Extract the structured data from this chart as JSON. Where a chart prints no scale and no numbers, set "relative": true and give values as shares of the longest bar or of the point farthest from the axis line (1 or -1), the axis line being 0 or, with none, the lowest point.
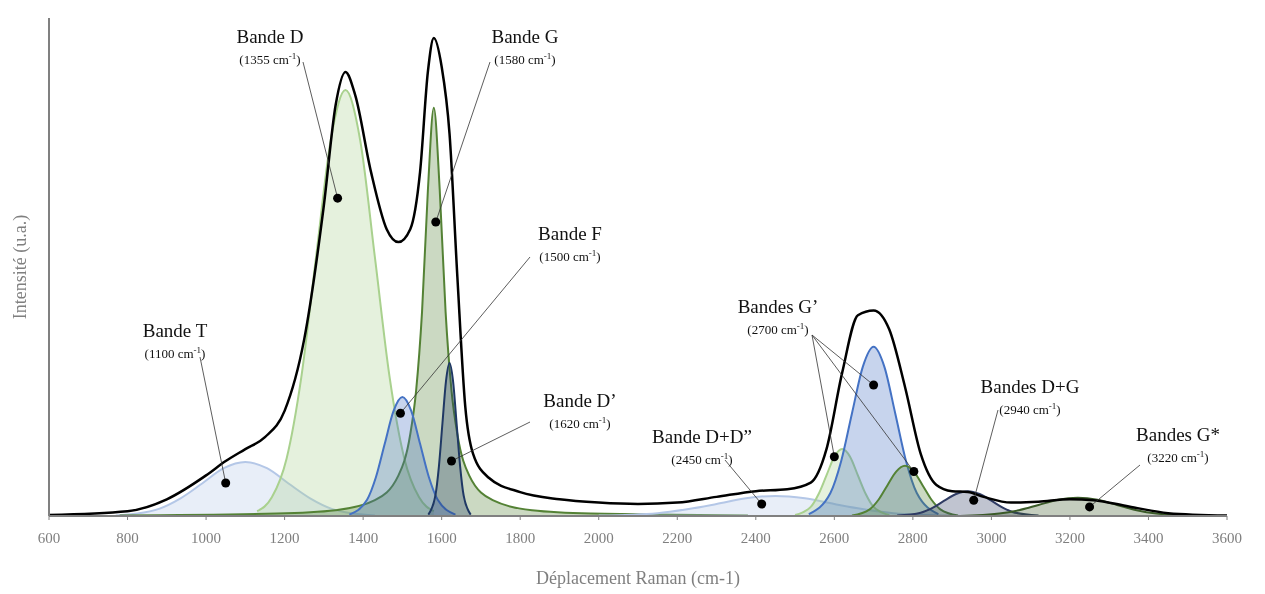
{
  "chart_data": {
    "type": "area",
    "relative": true,
    "xlabel": "Déplacement Raman (cm-1)",
    "ylabel": "Intensité (u.a.)",
    "xlim": [
      600,
      3600
    ],
    "xticks": [
      600,
      800,
      1000,
      1200,
      1400,
      1600,
      1800,
      2000,
      2200,
      2400,
      2600,
      2800,
      3000,
      3200,
      3400,
      3600
    ],
    "series": [
      {
        "color": "#b4c7e7",
        "x": [
          770,
          825,
          880,
          935,
          990,
          1045,
          1100,
          1155,
          1210,
          1265,
          1320,
          1375,
          1430
        ],
        "values": [
          0.001,
          0.005,
          0.015,
          0.037,
          0.068,
          0.1,
          0.113,
          0.1,
          0.068,
          0.037,
          0.015,
          0.005,
          0.001
        ]
      },
      {
        "color": "#a9d18e",
        "x": [
          1130,
          1167.5,
          1205,
          1242.5,
          1280,
          1317.5,
          1355,
          1392.5,
          1430,
          1467.5,
          1505,
          1542.5,
          1580
        ],
        "values": [
          0.01,
          0.039,
          0.12,
          0.29,
          0.541,
          0.786,
          0.891,
          0.786,
          0.541,
          0.29,
          0.12,
          0.039,
          0.01
        ]
      },
      {
        "color": "#548235",
        "x": [
          780,
          1180,
          1330,
          1430,
          1490,
          1520,
          1535,
          1550,
          1565,
          1580,
          1595,
          1610,
          1625,
          1640,
          1670,
          1730,
          1830,
          1980,
          2380
        ],
        "values": [
          0.001,
          0.005,
          0.012,
          0.033,
          0.085,
          0.171,
          0.263,
          0.427,
          0.683,
          0.854,
          0.683,
          0.427,
          0.263,
          0.171,
          0.085,
          0.033,
          0.012,
          0.005,
          0.001
        ]
      },
      {
        "color": "#4472c4",
        "x": [
          1365,
          1410,
          1432.5,
          1455,
          1477.5,
          1500,
          1522.5,
          1545,
          1567.5,
          1590,
          1635
        ],
        "values": [
          0.003,
          0.034,
          0.081,
          0.151,
          0.22,
          0.249,
          0.22,
          0.151,
          0.081,
          0.034,
          0.003
        ]
      },
      {
        "color": "#1f3864",
        "x": [
          1566,
          1584,
          1593,
          1602,
          1611,
          1620,
          1629,
          1638,
          1647,
          1656,
          1674
        ],
        "values": [
          0.003,
          0.043,
          0.104,
          0.194,
          0.282,
          0.32,
          0.282,
          0.194,
          0.104,
          0.043,
          0.003
        ]
      },
      {
        "color": "#b4c7e7",
        "x": [
          2000,
          2150,
          2225,
          2300,
          2375,
          2450,
          2525,
          2600,
          2675,
          2750,
          2900
        ],
        "values": [
          0.001,
          0.006,
          0.014,
          0.025,
          0.037,
          0.042,
          0.037,
          0.025,
          0.014,
          0.006,
          0.001
        ]
      },
      {
        "color": "#a9d18e",
        "x": [
          2500,
          2540,
          2560,
          2580,
          2600,
          2620,
          2640,
          2660,
          2680,
          2700,
          2740
        ],
        "values": [
          0.002,
          0.019,
          0.046,
          0.085,
          0.124,
          0.14,
          0.124,
          0.085,
          0.046,
          0.019,
          0.002
        ]
      },
      {
        "color": "#4472c4",
        "x": [
          2535,
          2590,
          2617.5,
          2645,
          2672.5,
          2700,
          2727.5,
          2755,
          2782.5,
          2810,
          2865
        ],
        "values": [
          0.004,
          0.048,
          0.115,
          0.215,
          0.312,
          0.354,
          0.312,
          0.215,
          0.115,
          0.048,
          0.004
        ]
      },
      {
        "color": "#548235",
        "x": [
          2645,
          2690,
          2712.5,
          2735,
          2757.5,
          2780,
          2802.5,
          2825,
          2847.5,
          2870,
          2915
        ],
        "values": [
          0.001,
          0.014,
          0.034,
          0.064,
          0.093,
          0.105,
          0.093,
          0.064,
          0.034,
          0.014,
          0.001
        ]
      },
      {
        "color": "#2f3b63",
        "x": [
          2760,
          2820,
          2850,
          2880,
          2910,
          2940,
          2970,
          3000,
          3030,
          3060,
          3120
        ],
        "values": [
          0.001,
          0.007,
          0.017,
          0.032,
          0.046,
          0.052,
          0.046,
          0.032,
          0.017,
          0.007,
          0.001
        ]
      },
      {
        "color": "#3a5a28",
        "x": [
          2920,
          3020,
          3070,
          3120,
          3170,
          3220,
          3270,
          3320,
          3370,
          3420,
          3520
        ],
        "values": [
          0,
          0.005,
          0.012,
          0.023,
          0.034,
          0.038,
          0.034,
          0.023,
          0.012,
          0.005,
          0
        ]
      },
      {
        "type": "line",
        "color": "#000000",
        "x": [
          600,
          800,
          900,
          1000,
          1050,
          1100,
          1150,
          1200,
          1250,
          1300,
          1330,
          1355,
          1380,
          1420,
          1460,
          1490,
          1520,
          1545,
          1565,
          1580,
          1600,
          1620,
          1640,
          1660,
          1680,
          1720,
          1800,
          1900,
          2000,
          2100,
          2200,
          2300,
          2400,
          2480,
          2540,
          2580,
          2620,
          2660,
          2700,
          2740,
          2780,
          2820,
          2860,
          2900,
          2940,
          2980,
          3050,
          3120,
          3200,
          3260,
          3350,
          3450,
          3600
        ],
        "values": [
          0.002,
          0.01,
          0.035,
          0.085,
          0.115,
          0.14,
          0.165,
          0.22,
          0.37,
          0.65,
          0.86,
          0.929,
          0.88,
          0.72,
          0.6,
          0.573,
          0.6,
          0.72,
          0.93,
          1.0,
          0.94,
          0.8,
          0.5,
          0.23,
          0.13,
          0.08,
          0.05,
          0.035,
          0.028,
          0.025,
          0.028,
          0.04,
          0.052,
          0.056,
          0.07,
          0.14,
          0.3,
          0.42,
          0.43,
          0.39,
          0.27,
          0.13,
          0.065,
          0.052,
          0.05,
          0.04,
          0.028,
          0.03,
          0.035,
          0.033,
          0.02,
          0.006,
          0.001
        ]
      }
    ],
    "annotations": [
      {
        "text": "Bande T\n(1100 cm$^{-1}$)",
        "x": 1050,
        "y": 0.069
      },
      {
        "text": "Bande D\n(1355 cm$^{-1}$)",
        "x": 1335,
        "y": 0.665
      },
      {
        "text": "Bande G\n(1580 cm$^{-1}$)",
        "x": 1585,
        "y": 0.615
      },
      {
        "text": "Bande F\n(1500 cm$^{-1}$)",
        "x": 1495,
        "y": 0.215
      },
      {
        "text": "Bande D’\n(1620 cm$^{-1}$)",
        "x": 1625,
        "y": 0.115
      },
      {
        "text": "Bande D+D”\n(2450 cm$^{-1}$)",
        "x": 2415,
        "y": 0.025
      },
      {
        "text": "Bandes G’\n(2700 cm$^{-1}$)",
        "x": 2700,
        "y": 0.274
      },
      {
        "text": "Bandes D+G\n(2940 cm$^{-1}$)",
        "x": 2955,
        "y": 0.033
      },
      {
        "text": "Bandes G*\n(3220 cm$^{-1}$)",
        "x": 3250,
        "y": 0.019
      }
    ]
  }
}
